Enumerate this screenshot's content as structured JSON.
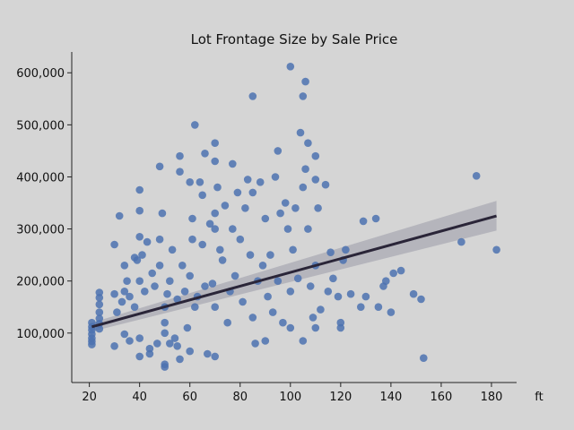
{
  "chart_data": {
    "type": "scatter",
    "title": "Lot Frontage Size by Sale Price",
    "xlabel": "ft",
    "ylabel": "",
    "xlim": [
      13,
      190
    ],
    "ylim": [
      5000,
      640000
    ],
    "x_ticks": [
      20,
      40,
      60,
      80,
      100,
      120,
      140,
      160,
      180
    ],
    "x_tick_labels": [
      "20",
      "40",
      "60",
      "80",
      "100",
      "120",
      "140",
      "160",
      "180"
    ],
    "y_ticks": [
      100000,
      200000,
      300000,
      400000,
      500000,
      600000
    ],
    "y_tick_labels": [
      "100,000",
      "200,000",
      "300,000",
      "400,000",
      "500,000",
      "600,000"
    ],
    "grid": false,
    "point_color": "#4c72b0",
    "regression": {
      "x": [
        21,
        182
      ],
      "y": [
        112000,
        325000
      ],
      "ci_lower": [
        103000,
        297000
      ],
      "ci_upper": [
        120000,
        354000
      ],
      "line_color": "#2a2538",
      "band_color": "#9a9aa8"
    },
    "background": "#d5d5d5",
    "points": [
      [
        21,
        112000
      ],
      [
        21,
        98000
      ],
      [
        21,
        90000
      ],
      [
        21,
        84000
      ],
      [
        21,
        78000
      ],
      [
        21,
        120000
      ],
      [
        21,
        106000
      ],
      [
        24,
        178000
      ],
      [
        24,
        168000
      ],
      [
        24,
        155000
      ],
      [
        24,
        140000
      ],
      [
        24,
        128000
      ],
      [
        24,
        118000
      ],
      [
        24,
        108000
      ],
      [
        30,
        270000
      ],
      [
        30,
        175000
      ],
      [
        30,
        75000
      ],
      [
        31,
        140000
      ],
      [
        32,
        325000
      ],
      [
        33,
        160000
      ],
      [
        34,
        230000
      ],
      [
        34,
        180000
      ],
      [
        34,
        98000
      ],
      [
        35,
        200000
      ],
      [
        36,
        170000
      ],
      [
        36,
        85000
      ],
      [
        38,
        245000
      ],
      [
        38,
        150000
      ],
      [
        39,
        240000
      ],
      [
        40,
        375000
      ],
      [
        40,
        335000
      ],
      [
        40,
        285000
      ],
      [
        40,
        200000
      ],
      [
        40,
        90000
      ],
      [
        40,
        55000
      ],
      [
        41,
        250000
      ],
      [
        42,
        180000
      ],
      [
        43,
        275000
      ],
      [
        44,
        60000
      ],
      [
        44,
        70000
      ],
      [
        45,
        215000
      ],
      [
        46,
        190000
      ],
      [
        47,
        80000
      ],
      [
        48,
        420000
      ],
      [
        48,
        280000
      ],
      [
        48,
        230000
      ],
      [
        49,
        330000
      ],
      [
        50,
        40000
      ],
      [
        50,
        35000
      ],
      [
        50,
        100000
      ],
      [
        50,
        150000
      ],
      [
        50,
        120000
      ],
      [
        51,
        175000
      ],
      [
        52,
        80000
      ],
      [
        52,
        200000
      ],
      [
        53,
        260000
      ],
      [
        54,
        90000
      ],
      [
        55,
        75000
      ],
      [
        55,
        165000
      ],
      [
        56,
        410000
      ],
      [
        56,
        440000
      ],
      [
        56,
        50000
      ],
      [
        57,
        230000
      ],
      [
        58,
        180000
      ],
      [
        59,
        110000
      ],
      [
        60,
        390000
      ],
      [
        60,
        210000
      ],
      [
        60,
        65000
      ],
      [
        61,
        320000
      ],
      [
        61,
        280000
      ],
      [
        62,
        500000
      ],
      [
        62,
        150000
      ],
      [
        63,
        170000
      ],
      [
        64,
        390000
      ],
      [
        65,
        365000
      ],
      [
        65,
        270000
      ],
      [
        66,
        445000
      ],
      [
        66,
        190000
      ],
      [
        67,
        60000
      ],
      [
        68,
        310000
      ],
      [
        69,
        195000
      ],
      [
        70,
        465000
      ],
      [
        70,
        430000
      ],
      [
        70,
        330000
      ],
      [
        70,
        300000
      ],
      [
        70,
        150000
      ],
      [
        70,
        55000
      ],
      [
        71,
        380000
      ],
      [
        72,
        260000
      ],
      [
        73,
        240000
      ],
      [
        74,
        345000
      ],
      [
        75,
        120000
      ],
      [
        76,
        180000
      ],
      [
        77,
        425000
      ],
      [
        77,
        300000
      ],
      [
        78,
        210000
      ],
      [
        79,
        370000
      ],
      [
        80,
        280000
      ],
      [
        81,
        160000
      ],
      [
        82,
        340000
      ],
      [
        83,
        395000
      ],
      [
        84,
        250000
      ],
      [
        85,
        555000
      ],
      [
        85,
        370000
      ],
      [
        85,
        130000
      ],
      [
        86,
        80000
      ],
      [
        87,
        200000
      ],
      [
        88,
        390000
      ],
      [
        89,
        230000
      ],
      [
        90,
        320000
      ],
      [
        90,
        85000
      ],
      [
        91,
        170000
      ],
      [
        92,
        250000
      ],
      [
        93,
        140000
      ],
      [
        94,
        400000
      ],
      [
        95,
        450000
      ],
      [
        95,
        200000
      ],
      [
        96,
        330000
      ],
      [
        97,
        120000
      ],
      [
        98,
        350000
      ],
      [
        99,
        300000
      ],
      [
        100,
        612000
      ],
      [
        100,
        180000
      ],
      [
        100,
        110000
      ],
      [
        101,
        260000
      ],
      [
        102,
        340000
      ],
      [
        103,
        205000
      ],
      [
        104,
        485000
      ],
      [
        105,
        555000
      ],
      [
        105,
        380000
      ],
      [
        105,
        85000
      ],
      [
        106,
        583000
      ],
      [
        106,
        415000
      ],
      [
        107,
        465000
      ],
      [
        107,
        300000
      ],
      [
        108,
        190000
      ],
      [
        109,
        130000
      ],
      [
        110,
        440000
      ],
      [
        110,
        395000
      ],
      [
        110,
        230000
      ],
      [
        110,
        110000
      ],
      [
        111,
        340000
      ],
      [
        112,
        145000
      ],
      [
        114,
        385000
      ],
      [
        115,
        180000
      ],
      [
        116,
        255000
      ],
      [
        117,
        205000
      ],
      [
        119,
        170000
      ],
      [
        120,
        120000
      ],
      [
        120,
        110000
      ],
      [
        121,
        240000
      ],
      [
        122,
        260000
      ],
      [
        124,
        175000
      ],
      [
        128,
        150000
      ],
      [
        129,
        315000
      ],
      [
        130,
        170000
      ],
      [
        134,
        320000
      ],
      [
        135,
        150000
      ],
      [
        137,
        190000
      ],
      [
        138,
        200000
      ],
      [
        140,
        140000
      ],
      [
        141,
        215000
      ],
      [
        144,
        220000
      ],
      [
        149,
        175000
      ],
      [
        152,
        165000
      ],
      [
        153,
        52000
      ],
      [
        168,
        275000
      ],
      [
        174,
        402000
      ],
      [
        182,
        260000
      ]
    ]
  }
}
